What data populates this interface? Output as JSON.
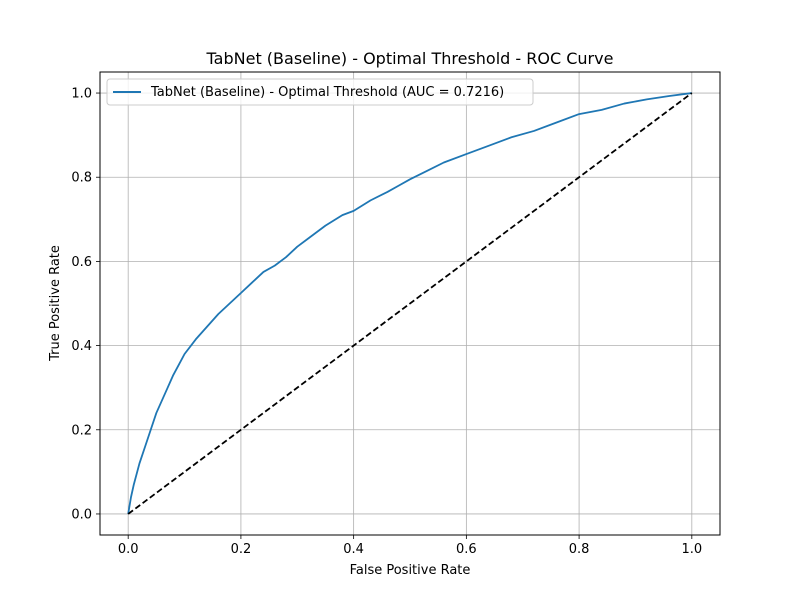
{
  "chart_data": {
    "type": "line",
    "title": "TabNet (Baseline) - Optimal Threshold - ROC Curve",
    "xlabel": "False Positive Rate",
    "ylabel": "True Positive Rate",
    "xlim": [
      -0.05,
      1.05
    ],
    "ylim": [
      -0.05,
      1.05
    ],
    "xticks": [
      0.0,
      0.2,
      0.4,
      0.6,
      0.8,
      1.0
    ],
    "yticks": [
      0.0,
      0.2,
      0.4,
      0.6,
      0.8,
      1.0
    ],
    "xtick_labels": [
      "0.0",
      "0.2",
      "0.4",
      "0.6",
      "0.8",
      "1.0"
    ],
    "ytick_labels": [
      "0.0",
      "0.2",
      "0.4",
      "0.6",
      "0.8",
      "1.0"
    ],
    "grid": true,
    "legend_position": "top-left",
    "series": [
      {
        "name": "TabNet (Baseline) - Optimal Threshold (AUC = 0.7216)",
        "color": "#1f77b4",
        "style": "solid",
        "x": [
          0.0,
          0.005,
          0.01,
          0.02,
          0.03,
          0.04,
          0.05,
          0.06,
          0.07,
          0.08,
          0.09,
          0.1,
          0.12,
          0.14,
          0.16,
          0.18,
          0.2,
          0.22,
          0.24,
          0.26,
          0.28,
          0.3,
          0.32,
          0.35,
          0.38,
          0.4,
          0.43,
          0.46,
          0.48,
          0.5,
          0.53,
          0.56,
          0.6,
          0.64,
          0.68,
          0.72,
          0.76,
          0.8,
          0.84,
          0.88,
          0.92,
          0.96,
          1.0
        ],
        "y": [
          0.0,
          0.04,
          0.07,
          0.12,
          0.16,
          0.2,
          0.24,
          0.27,
          0.3,
          0.33,
          0.355,
          0.38,
          0.415,
          0.445,
          0.475,
          0.5,
          0.525,
          0.55,
          0.575,
          0.59,
          0.61,
          0.635,
          0.655,
          0.685,
          0.71,
          0.72,
          0.745,
          0.765,
          0.78,
          0.795,
          0.815,
          0.835,
          0.855,
          0.875,
          0.895,
          0.91,
          0.93,
          0.95,
          0.96,
          0.975,
          0.985,
          0.993,
          1.0
        ]
      },
      {
        "name": "",
        "color": "#000000",
        "style": "dashed",
        "x": [
          0.0,
          1.0
        ],
        "y": [
          0.0,
          1.0
        ]
      }
    ]
  }
}
